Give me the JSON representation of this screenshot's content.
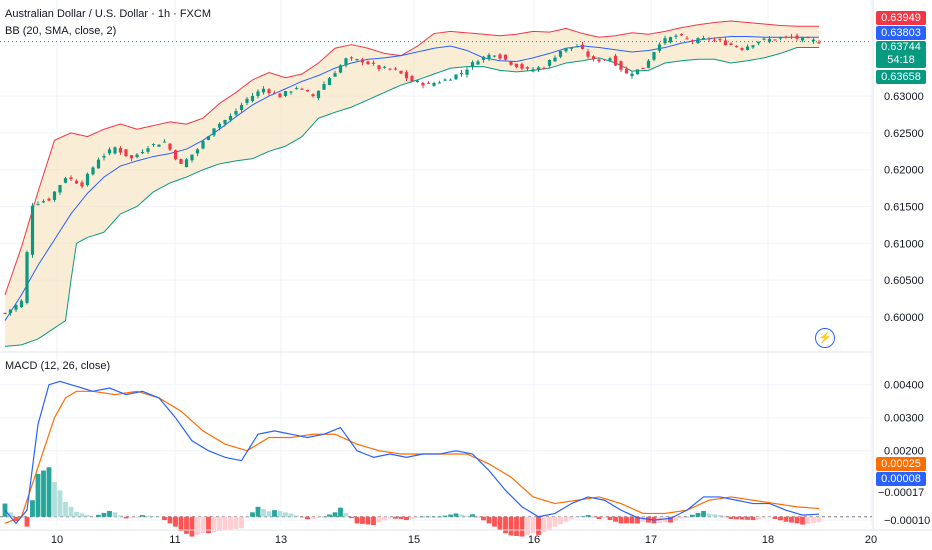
{
  "header": {
    "title": "Australian Dollar / U.S. Dollar · 1h · FXCM",
    "bb_label": "BB (20, SMA, close, 2)",
    "macd_label": "MACD (12, 26, close)"
  },
  "colors": {
    "up": "#089981",
    "down": "#f23645",
    "bb_upper": "#f23645",
    "bb_basis": "#2962ff",
    "bb_lower": "#089981",
    "bb_fill": "#f5deb3",
    "macd": "#2962ff",
    "signal": "#ff6d00",
    "hist_up_strong": "#26a69a",
    "hist_up_weak": "#b2dfdb",
    "hist_down_strong": "#ff5252",
    "hist_down_weak": "#ffcdd2"
  },
  "price_labels": {
    "upper": "0.63949",
    "basis": "0.63803",
    "close": "0.63744",
    "countdown": "54:18",
    "lower": "0.63658"
  },
  "macd_labels": {
    "signal": "0.00025",
    "macd": "0.00008",
    "hist": "−0.00017"
  },
  "chart_data": [
    {
      "type": "candlestick",
      "title": "Australian Dollar / U.S. Dollar · 1h · FXCM",
      "indicator": "BB (20, SMA, close, 2)",
      "x_ticks": [
        "10",
        "11",
        "13",
        "15",
        "16",
        "17",
        "18",
        "20"
      ],
      "y_ticks": [
        "0.63000",
        "0.62500",
        "0.62000",
        "0.61500",
        "0.61000",
        "0.60500",
        "0.60000"
      ],
      "ylim": [
        0.5955,
        0.6417
      ],
      "close_path": [
        [
          0,
          0.6005
        ],
        [
          3,
          0.6021
        ],
        [
          5,
          0.6153
        ],
        [
          8,
          0.616
        ],
        [
          11,
          0.619
        ],
        [
          14,
          0.618
        ],
        [
          17,
          0.6215
        ],
        [
          20,
          0.623
        ],
        [
          23,
          0.6215
        ],
        [
          26,
          0.6232
        ],
        [
          29,
          0.6238
        ],
        [
          32,
          0.6206
        ],
        [
          35,
          0.6228
        ],
        [
          38,
          0.6258
        ],
        [
          41,
          0.6272
        ],
        [
          44,
          0.6296
        ],
        [
          47,
          0.631
        ],
        [
          50,
          0.63
        ],
        [
          53,
          0.6312
        ],
        [
          56,
          0.63
        ],
        [
          59,
          0.6325
        ],
        [
          62,
          0.635
        ],
        [
          65,
          0.6348
        ],
        [
          68,
          0.6338
        ],
        [
          71,
          0.6335
        ],
        [
          74,
          0.632
        ],
        [
          77,
          0.6316
        ],
        [
          80,
          0.6322
        ],
        [
          83,
          0.6332
        ],
        [
          86,
          0.635
        ],
        [
          89,
          0.6358
        ],
        [
          92,
          0.6345
        ],
        [
          95,
          0.6335
        ],
        [
          98,
          0.634
        ],
        [
          101,
          0.6362
        ],
        [
          104,
          0.6368
        ],
        [
          107,
          0.6348
        ],
        [
          110,
          0.6352
        ],
        [
          113,
          0.633
        ],
        [
          116,
          0.6338
        ],
        [
          119,
          0.6373
        ],
        [
          122,
          0.6382
        ],
        [
          125,
          0.6375
        ],
        [
          128,
          0.6378
        ],
        [
          131,
          0.6372
        ],
        [
          134,
          0.6365
        ],
        [
          137,
          0.6375
        ],
        [
          140,
          0.6378
        ],
        [
          143,
          0.638
        ],
        [
          146,
          0.6376
        ],
        [
          148,
          0.6374
        ]
      ],
      "bb_upper": [
        [
          0,
          0.603
        ],
        [
          3,
          0.6095
        ],
        [
          6,
          0.617
        ],
        [
          9,
          0.624
        ],
        [
          12,
          0.625
        ],
        [
          15,
          0.6245
        ],
        [
          18,
          0.6255
        ],
        [
          21,
          0.6262
        ],
        [
          24,
          0.6255
        ],
        [
          27,
          0.626
        ],
        [
          30,
          0.6265
        ],
        [
          33,
          0.6262
        ],
        [
          36,
          0.627
        ],
        [
          39,
          0.629
        ],
        [
          42,
          0.6305
        ],
        [
          45,
          0.6322
        ],
        [
          48,
          0.6332
        ],
        [
          51,
          0.6325
        ],
        [
          54,
          0.633
        ],
        [
          57,
          0.6345
        ],
        [
          60,
          0.6365
        ],
        [
          63,
          0.637
        ],
        [
          66,
          0.6365
        ],
        [
          69,
          0.6358
        ],
        [
          72,
          0.6355
        ],
        [
          75,
          0.6368
        ],
        [
          78,
          0.6385
        ],
        [
          81,
          0.6388
        ],
        [
          84,
          0.6386
        ],
        [
          87,
          0.6384
        ],
        [
          90,
          0.6382
        ],
        [
          93,
          0.6384
        ],
        [
          96,
          0.6388
        ],
        [
          99,
          0.6387
        ],
        [
          102,
          0.6392
        ],
        [
          105,
          0.6385
        ],
        [
          108,
          0.638
        ],
        [
          111,
          0.6382
        ],
        [
          114,
          0.6386
        ],
        [
          117,
          0.6384
        ],
        [
          120,
          0.6388
        ],
        [
          123,
          0.6393
        ],
        [
          126,
          0.6397
        ],
        [
          129,
          0.64
        ],
        [
          132,
          0.6402
        ],
        [
          135,
          0.64
        ],
        [
          138,
          0.6398
        ],
        [
          141,
          0.6396
        ],
        [
          144,
          0.6395
        ],
        [
          148,
          0.6395
        ]
      ],
      "bb_basis": [
        [
          0,
          0.5995
        ],
        [
          3,
          0.603
        ],
        [
          6,
          0.607
        ],
        [
          9,
          0.6105
        ],
        [
          12,
          0.614
        ],
        [
          15,
          0.6168
        ],
        [
          18,
          0.619
        ],
        [
          21,
          0.6205
        ],
        [
          24,
          0.6212
        ],
        [
          27,
          0.6218
        ],
        [
          30,
          0.6222
        ],
        [
          33,
          0.6228
        ],
        [
          36,
          0.624
        ],
        [
          39,
          0.6255
        ],
        [
          42,
          0.6272
        ],
        [
          45,
          0.6288
        ],
        [
          48,
          0.63
        ],
        [
          51,
          0.631
        ],
        [
          54,
          0.632
        ],
        [
          57,
          0.6328
        ],
        [
          60,
          0.6338
        ],
        [
          63,
          0.6345
        ],
        [
          66,
          0.635
        ],
        [
          69,
          0.6352
        ],
        [
          72,
          0.6355
        ],
        [
          75,
          0.636
        ],
        [
          78,
          0.6365
        ],
        [
          81,
          0.6368
        ],
        [
          84,
          0.6362
        ],
        [
          87,
          0.6352
        ],
        [
          90,
          0.6348
        ],
        [
          93,
          0.6347
        ],
        [
          96,
          0.6352
        ],
        [
          99,
          0.6358
        ],
        [
          102,
          0.6365
        ],
        [
          105,
          0.6368
        ],
        [
          108,
          0.6366
        ],
        [
          111,
          0.6363
        ],
        [
          114,
          0.636
        ],
        [
          117,
          0.6362
        ],
        [
          120,
          0.6366
        ],
        [
          123,
          0.6372
        ],
        [
          126,
          0.6376
        ],
        [
          129,
          0.6379
        ],
        [
          132,
          0.6381
        ],
        [
          135,
          0.6381
        ],
        [
          138,
          0.638
        ],
        [
          141,
          0.638
        ],
        [
          144,
          0.638
        ],
        [
          148,
          0.638
        ]
      ],
      "bb_lower": [
        [
          0,
          0.596
        ],
        [
          3,
          0.5962
        ],
        [
          6,
          0.597
        ],
        [
          9,
          0.5985
        ],
        [
          11,
          0.5995
        ],
        [
          12,
          0.605
        ],
        [
          13,
          0.61
        ],
        [
          15,
          0.6108
        ],
        [
          18,
          0.6115
        ],
        [
          21,
          0.614
        ],
        [
          24,
          0.615
        ],
        [
          27,
          0.617
        ],
        [
          30,
          0.6182
        ],
        [
          33,
          0.619
        ],
        [
          36,
          0.62
        ],
        [
          39,
          0.6208
        ],
        [
          42,
          0.6212
        ],
        [
          45,
          0.6215
        ],
        [
          48,
          0.6225
        ],
        [
          51,
          0.6232
        ],
        [
          54,
          0.6245
        ],
        [
          57,
          0.627
        ],
        [
          60,
          0.6278
        ],
        [
          63,
          0.6285
        ],
        [
          66,
          0.6295
        ],
        [
          69,
          0.6305
        ],
        [
          72,
          0.6315
        ],
        [
          75,
          0.6322
        ],
        [
          78,
          0.633
        ],
        [
          81,
          0.6338
        ],
        [
          84,
          0.634
        ],
        [
          87,
          0.634
        ],
        [
          90,
          0.6335
        ],
        [
          93,
          0.6333
        ],
        [
          96,
          0.6335
        ],
        [
          99,
          0.6338
        ],
        [
          102,
          0.6345
        ],
        [
          105,
          0.6348
        ],
        [
          108,
          0.6352
        ],
        [
          111,
          0.6345
        ],
        [
          114,
          0.6334
        ],
        [
          117,
          0.6335
        ],
        [
          120,
          0.6345
        ],
        [
          123,
          0.6348
        ],
        [
          126,
          0.635
        ],
        [
          129,
          0.635
        ],
        [
          132,
          0.6345
        ],
        [
          135,
          0.6348
        ],
        [
          138,
          0.6352
        ],
        [
          141,
          0.6358
        ],
        [
          144,
          0.6366
        ],
        [
          148,
          0.6366
        ]
      ]
    },
    {
      "type": "line",
      "title": "MACD (12, 26, close)",
      "y_ticks": [
        "0.00400",
        "0.00300",
        "0.00200",
        "−0.00010"
      ],
      "ylim": [
        -0.00025,
        0.0049
      ],
      "series": [
        {
          "name": "MACD",
          "points": [
            [
              0,
              0.0002
            ],
            [
              2,
              -0.0002
            ],
            [
              4,
              0.0002
            ],
            [
              6,
              0.0028
            ],
            [
              8,
              0.004
            ],
            [
              10,
              0.0041
            ],
            [
              12,
              0.004
            ],
            [
              14,
              0.0039
            ],
            [
              16,
              0.0038
            ],
            [
              19,
              0.0039
            ],
            [
              22,
              0.0037
            ],
            [
              25,
              0.0038
            ],
            [
              28,
              0.0036
            ],
            [
              31,
              0.003
            ],
            [
              34,
              0.0023
            ],
            [
              37,
              0.002
            ],
            [
              40,
              0.0018
            ],
            [
              43,
              0.0017
            ],
            [
              46,
              0.0025
            ],
            [
              49,
              0.0026
            ],
            [
              52,
              0.0025
            ],
            [
              55,
              0.0024
            ],
            [
              58,
              0.0025
            ],
            [
              61,
              0.0027
            ],
            [
              64,
              0.002
            ],
            [
              67,
              0.0018
            ],
            [
              70,
              0.0019
            ],
            [
              73,
              0.0018
            ],
            [
              76,
              0.0019
            ],
            [
              79,
              0.0019
            ],
            [
              82,
              0.002
            ],
            [
              85,
              0.0019
            ],
            [
              88,
              0.0014
            ],
            [
              91,
              0.0008
            ],
            [
              94,
              0.0003
            ],
            [
              97,
              0.0
            ],
            [
              100,
              0.0001
            ],
            [
              103,
              0.0004
            ],
            [
              106,
              0.0006
            ],
            [
              109,
              0.0005
            ],
            [
              112,
              0.0002
            ],
            [
              115,
              -3e-05
            ],
            [
              118,
              -0.0001
            ],
            [
              121,
              -5e-05
            ],
            [
              124,
              0.0002
            ],
            [
              127,
              0.0006
            ],
            [
              130,
              0.0006
            ],
            [
              133,
              0.0005
            ],
            [
              136,
              0.0004
            ],
            [
              139,
              0.0004
            ],
            [
              142,
              0.0002
            ],
            [
              145,
              5e-05
            ],
            [
              148,
              8e-05
            ]
          ]
        },
        {
          "name": "Signal",
          "points": [
            [
              0,
              -0.0002
            ],
            [
              3,
              0.0
            ],
            [
              6,
              0.0015
            ],
            [
              9,
              0.003
            ],
            [
              11,
              0.0036
            ],
            [
              13,
              0.0038
            ],
            [
              16,
              0.0038
            ],
            [
              20,
              0.0037
            ],
            [
              24,
              0.0038
            ],
            [
              28,
              0.0036
            ],
            [
              32,
              0.0032
            ],
            [
              36,
              0.0026
            ],
            [
              40,
              0.0022
            ],
            [
              44,
              0.002
            ],
            [
              48,
              0.0024
            ],
            [
              52,
              0.0024
            ],
            [
              56,
              0.0025
            ],
            [
              60,
              0.0025
            ],
            [
              64,
              0.0022
            ],
            [
              68,
              0.002
            ],
            [
              72,
              0.0019
            ],
            [
              76,
              0.0019
            ],
            [
              80,
              0.0019
            ],
            [
              84,
              0.0019
            ],
            [
              88,
              0.0016
            ],
            [
              92,
              0.0012
            ],
            [
              96,
              0.0006
            ],
            [
              100,
              0.0004
            ],
            [
              104,
              0.0005
            ],
            [
              108,
              0.0006
            ],
            [
              112,
              0.0004
            ],
            [
              116,
              0.0001
            ],
            [
              120,
              0.0001
            ],
            [
              124,
              0.0002
            ],
            [
              128,
              0.0005
            ],
            [
              132,
              0.0006
            ],
            [
              136,
              0.0005
            ],
            [
              140,
              0.0004
            ],
            [
              144,
              0.0003
            ],
            [
              148,
              0.00025
            ]
          ]
        }
      ]
    }
  ]
}
